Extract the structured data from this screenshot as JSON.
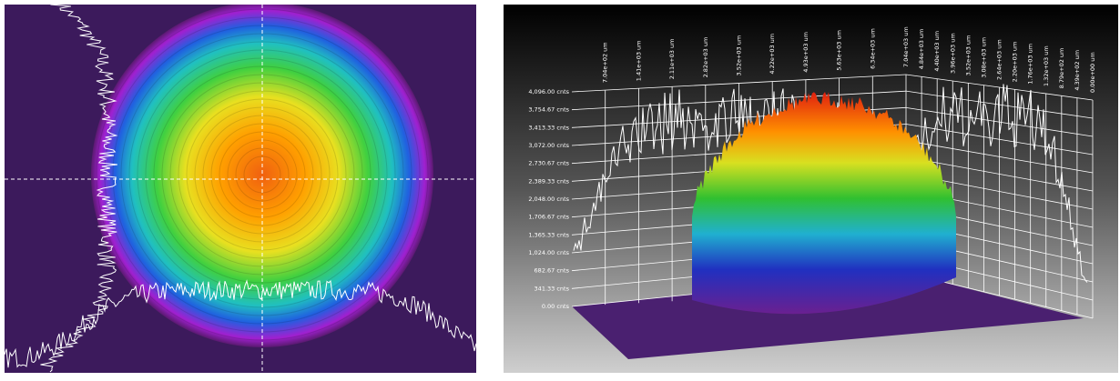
{
  "right_panel": {
    "z_labels": [
      "4,096.00 cnts",
      "3,754.67 cnts",
      "3,413.33 cnts",
      "3,072.00 cnts",
      "2,730.67 cnts",
      "2,389.33 cnts",
      "2,048.00 cnts",
      "1,706.67 cnts",
      "1,365.33 cnts",
      "1,024.00 cnts",
      "682.67 cnts",
      "341.33 cnts",
      "0.00 cnts"
    ],
    "x_labels": [
      "7.04e+02 um",
      "1.41e+03 um",
      "2.11e+03 um",
      "2.82e+03 um",
      "3.52e+03 um",
      "4.22e+03 um",
      "4.93e+03 um",
      "5.63e+03 um",
      "6.34e+03 um",
      "7.04e+03 um"
    ],
    "y_labels": [
      "4.84e+03 um",
      "4.40e+03 um",
      "3.96e+03 um",
      "3.52e+03 um",
      "3.08e+03 um",
      "2.64e+03 um",
      "2.20e+03 um",
      "1.76e+03 um",
      "1.32e+03 um",
      "8.79e+02 um",
      "4.39e+02 um",
      "0.00e+00 um"
    ]
  }
}
